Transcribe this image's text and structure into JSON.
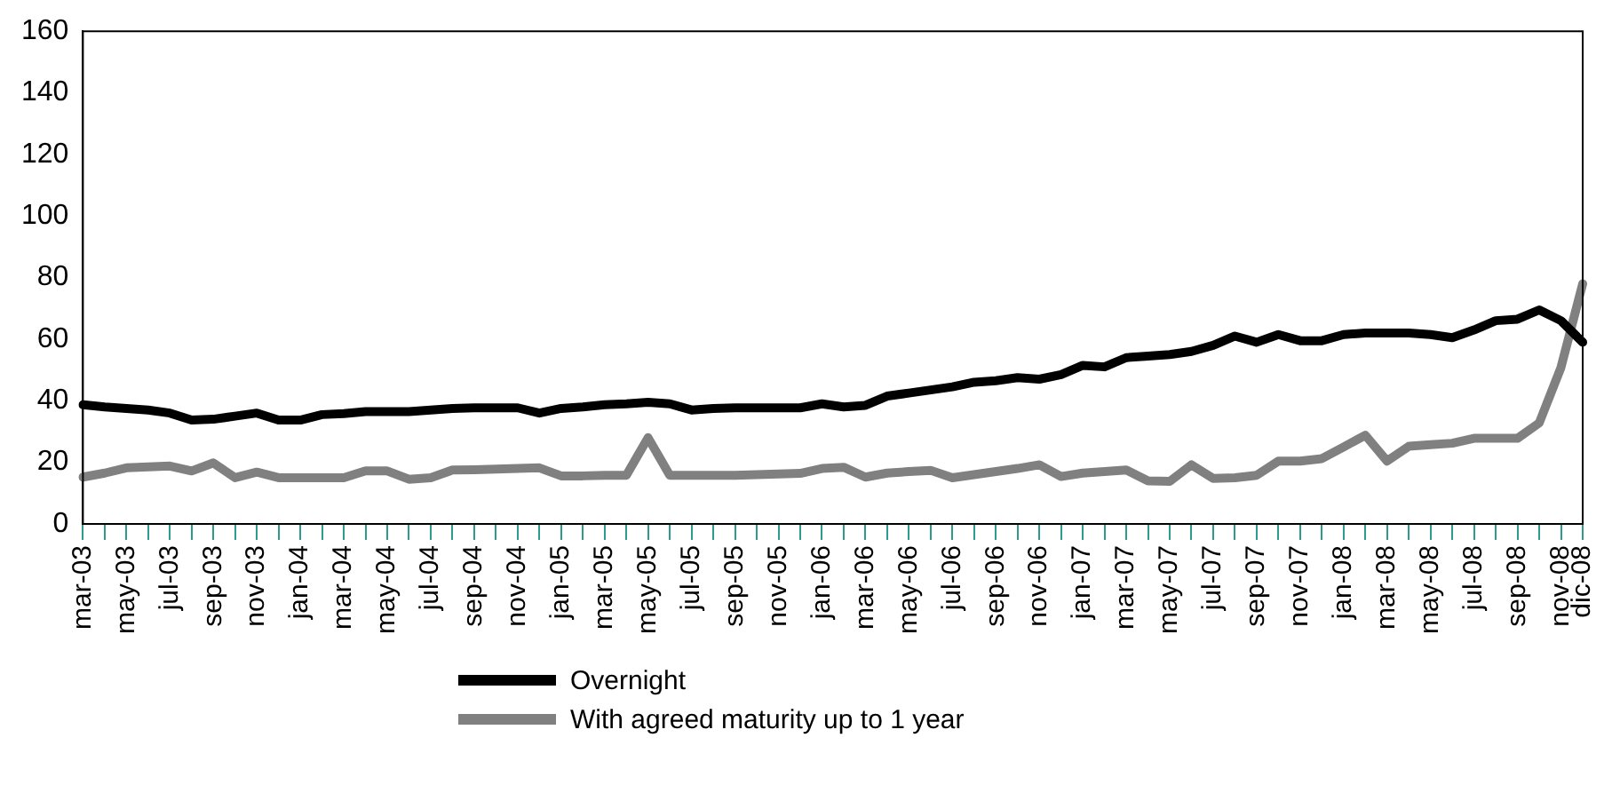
{
  "chart_data": {
    "type": "line",
    "categories": [
      "mar-03",
      null,
      "may-03",
      null,
      "jul-03",
      null,
      "sep-03",
      null,
      "nov-03",
      null,
      "jan-04",
      null,
      "mar-04",
      null,
      "may-04",
      null,
      "jul-04",
      null,
      "sep-04",
      null,
      "nov-04",
      null,
      "jan-05",
      null,
      "mar-05",
      null,
      "may-05",
      null,
      "jul-05",
      null,
      "sep-05",
      null,
      "nov-05",
      null,
      "jan-06",
      null,
      "mar-06",
      null,
      "may-06",
      null,
      "jul-06",
      null,
      "sep-06",
      null,
      "nov-06",
      null,
      "jan-07",
      null,
      "mar-07",
      null,
      "may-07",
      null,
      "jul-07",
      null,
      "sep-07",
      null,
      "nov-07",
      null,
      "jan-08",
      null,
      "mar-08",
      null,
      "may-08",
      null,
      "jul-08",
      null,
      "sep-08",
      null,
      "nov-08",
      "dic-08"
    ],
    "series": [
      {
        "name": "Overnight",
        "color": "#000000",
        "values": [
          38.7,
          38,
          37.5,
          37,
          36,
          33.7,
          34,
          35,
          36,
          33.7,
          33.7,
          35.5,
          35.8,
          36.5,
          36.5,
          36.5,
          37,
          37.5,
          37.7,
          37.7,
          37.7,
          36,
          37.5,
          38,
          38.7,
          39,
          39.5,
          39,
          37,
          37.5,
          37.7,
          37.7,
          37.7,
          37.7,
          39,
          38,
          38.5,
          41.5,
          42.5,
          43.5,
          44.5,
          46,
          46.5,
          47.5,
          47,
          48.5,
          51.5,
          51,
          54,
          54.5,
          55,
          56,
          58,
          61,
          59,
          61.5,
          59.5,
          59.5,
          61.5,
          62,
          62,
          62,
          61.5,
          60.5,
          63,
          66,
          66.5,
          69.5,
          66,
          59
        ]
      },
      {
        "name": "With agreed maturity up to 1 year",
        "color": "#808080",
        "values": [
          15.2,
          16.5,
          18.2,
          18.5,
          18.8,
          17.2,
          19.8,
          15,
          16.8,
          15,
          15,
          15,
          15,
          17.2,
          17.2,
          14.5,
          15,
          17.5,
          17.6,
          17.8,
          18,
          18.2,
          15.6,
          15.6,
          15.8,
          15.8,
          28,
          15.8,
          15.8,
          15.8,
          15.8,
          16,
          16.2,
          16.4,
          18,
          18.4,
          15.2,
          16.5,
          17,
          17.4,
          15,
          16,
          17,
          18,
          19.2,
          15.4,
          16.5,
          17,
          17.5,
          14,
          13.8,
          19.2,
          14.8,
          15,
          15.8,
          20.4,
          20.4,
          21.2,
          25,
          28.8,
          20.4,
          25.2,
          25.7,
          26.2,
          27.8,
          27.8,
          27.8,
          32.8,
          50.8,
          78
        ]
      }
    ],
    "ylim": [
      0,
      160
    ],
    "yticks": [
      0,
      20,
      40,
      60,
      80,
      100,
      120,
      140,
      160
    ],
    "grid": false,
    "legend": "bottom",
    "marker": "none",
    "line_style": "solid"
  }
}
